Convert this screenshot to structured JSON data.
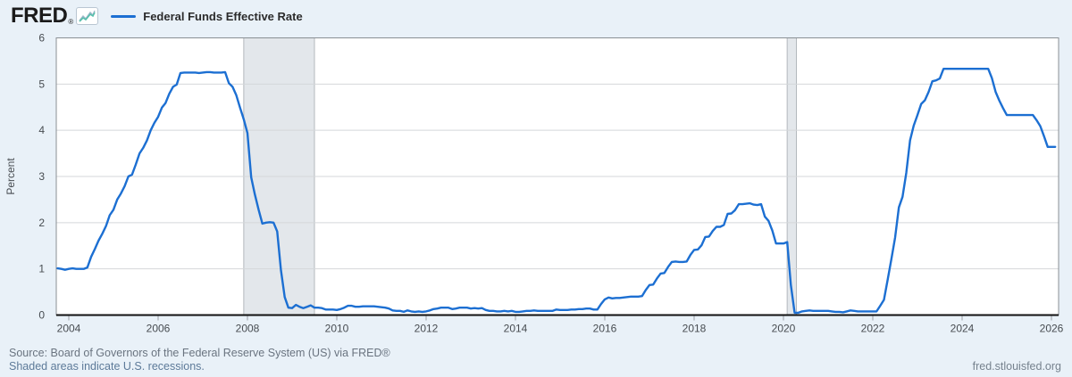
{
  "header": {
    "logo_text": "FRED",
    "logo_reg_mark": "®",
    "logo_icon": "line-chart-icon",
    "legend": {
      "label": "Federal Funds Effective Rate",
      "swatch_color": "#1c6fd2"
    }
  },
  "footer": {
    "source_line": "Source: Board of Governors of the Federal Reserve System (US) via FRED®",
    "recession_note": "Shaded areas indicate U.S. recessions.",
    "site_link": "fred.stlouisfed.org"
  },
  "chart_data": {
    "type": "line",
    "title": "Federal Funds Effective Rate",
    "xlabel": "",
    "ylabel": "Percent",
    "ylim": [
      0,
      6
    ],
    "yticks": [
      0,
      1,
      2,
      3,
      4,
      5,
      6
    ],
    "xticks": [
      2004,
      2006,
      2008,
      2010,
      2012,
      2014,
      2016,
      2018,
      2020,
      2022,
      2024,
      2026
    ],
    "x_range": [
      2003.72,
      2026.16
    ],
    "grid": "horizontal-only",
    "legend_position": "header-top-left",
    "colors": {
      "line": "#1c6fd2",
      "plot_bg": "#ffffff",
      "page_bg": "#e9f1f8",
      "gridline": "#d4d7da",
      "plot_border": "#8a8f94",
      "axis_bottom": "#111111",
      "recession_fill": "#e3e7eb",
      "recession_edge": "#b3b8bd",
      "tick_label": "#474c51"
    },
    "recession_bands": [
      {
        "start": 2007.917,
        "end": 2009.5
      },
      {
        "start": 2020.083,
        "end": 2020.29
      }
    ],
    "series": [
      {
        "name": "Federal Funds Effective Rate",
        "units": "Percent",
        "frequency": "monthly",
        "start_year": 2003,
        "start_month": 10,
        "values": [
          1.01,
          1.0,
          0.98,
          1.0,
          1.01,
          1.0,
          1.0,
          1.0,
          1.03,
          1.26,
          1.43,
          1.61,
          1.76,
          1.93,
          2.16,
          2.28,
          2.5,
          2.63,
          2.79,
          3.0,
          3.04,
          3.26,
          3.5,
          3.62,
          3.78,
          4.0,
          4.16,
          4.29,
          4.49,
          4.59,
          4.79,
          4.94,
          4.99,
          5.24,
          5.25,
          5.25,
          5.25,
          5.25,
          5.24,
          5.25,
          5.26,
          5.26,
          5.25,
          5.25,
          5.25,
          5.26,
          5.02,
          4.94,
          4.76,
          4.49,
          4.24,
          3.94,
          2.98,
          2.61,
          2.28,
          1.98,
          2.0,
          2.01,
          2.0,
          1.81,
          0.97,
          0.39,
          0.16,
          0.15,
          0.22,
          0.18,
          0.15,
          0.18,
          0.21,
          0.16,
          0.16,
          0.15,
          0.12,
          0.12,
          0.12,
          0.11,
          0.13,
          0.16,
          0.2,
          0.2,
          0.18,
          0.18,
          0.19,
          0.19,
          0.19,
          0.19,
          0.18,
          0.17,
          0.16,
          0.14,
          0.1,
          0.09,
          0.09,
          0.07,
          0.1,
          0.08,
          0.07,
          0.08,
          0.07,
          0.08,
          0.1,
          0.13,
          0.14,
          0.16,
          0.16,
          0.16,
          0.13,
          0.14,
          0.16,
          0.16,
          0.16,
          0.14,
          0.15,
          0.14,
          0.15,
          0.11,
          0.09,
          0.09,
          0.08,
          0.08,
          0.09,
          0.08,
          0.09,
          0.07,
          0.07,
          0.08,
          0.09,
          0.09,
          0.1,
          0.09,
          0.09,
          0.09,
          0.09,
          0.09,
          0.12,
          0.11,
          0.11,
          0.11,
          0.12,
          0.12,
          0.13,
          0.13,
          0.14,
          0.14,
          0.12,
          0.12,
          0.24,
          0.34,
          0.38,
          0.36,
          0.37,
          0.37,
          0.38,
          0.39,
          0.4,
          0.4,
          0.4,
          0.41,
          0.54,
          0.65,
          0.66,
          0.79,
          0.9,
          0.91,
          1.04,
          1.15,
          1.16,
          1.15,
          1.15,
          1.16,
          1.3,
          1.41,
          1.42,
          1.51,
          1.69,
          1.7,
          1.82,
          1.91,
          1.91,
          1.95,
          2.19,
          2.2,
          2.27,
          2.4,
          2.4,
          2.41,
          2.42,
          2.39,
          2.38,
          2.4,
          2.13,
          2.04,
          1.83,
          1.55,
          1.55,
          1.55,
          1.58,
          0.65,
          0.05,
          0.05,
          0.08,
          0.09,
          0.1,
          0.09,
          0.09,
          0.09,
          0.09,
          0.09,
          0.08,
          0.07,
          0.07,
          0.06,
          0.08,
          0.1,
          0.09,
          0.08,
          0.08,
          0.08,
          0.08,
          0.08,
          0.08,
          0.2,
          0.33,
          0.77,
          1.21,
          1.68,
          2.33,
          2.56,
          3.08,
          3.78,
          4.1,
          4.33,
          4.57,
          4.65,
          4.83,
          5.06,
          5.08,
          5.12,
          5.33,
          5.33,
          5.33,
          5.33,
          5.33,
          5.33,
          5.33,
          5.33,
          5.33,
          5.33,
          5.33,
          5.33,
          5.33,
          5.13,
          4.83,
          4.64,
          4.48,
          4.33,
          4.33,
          4.33,
          4.33,
          4.33,
          4.33,
          4.33,
          4.33,
          4.22,
          4.09,
          3.87,
          3.64,
          3.64,
          3.64
        ]
      }
    ]
  }
}
